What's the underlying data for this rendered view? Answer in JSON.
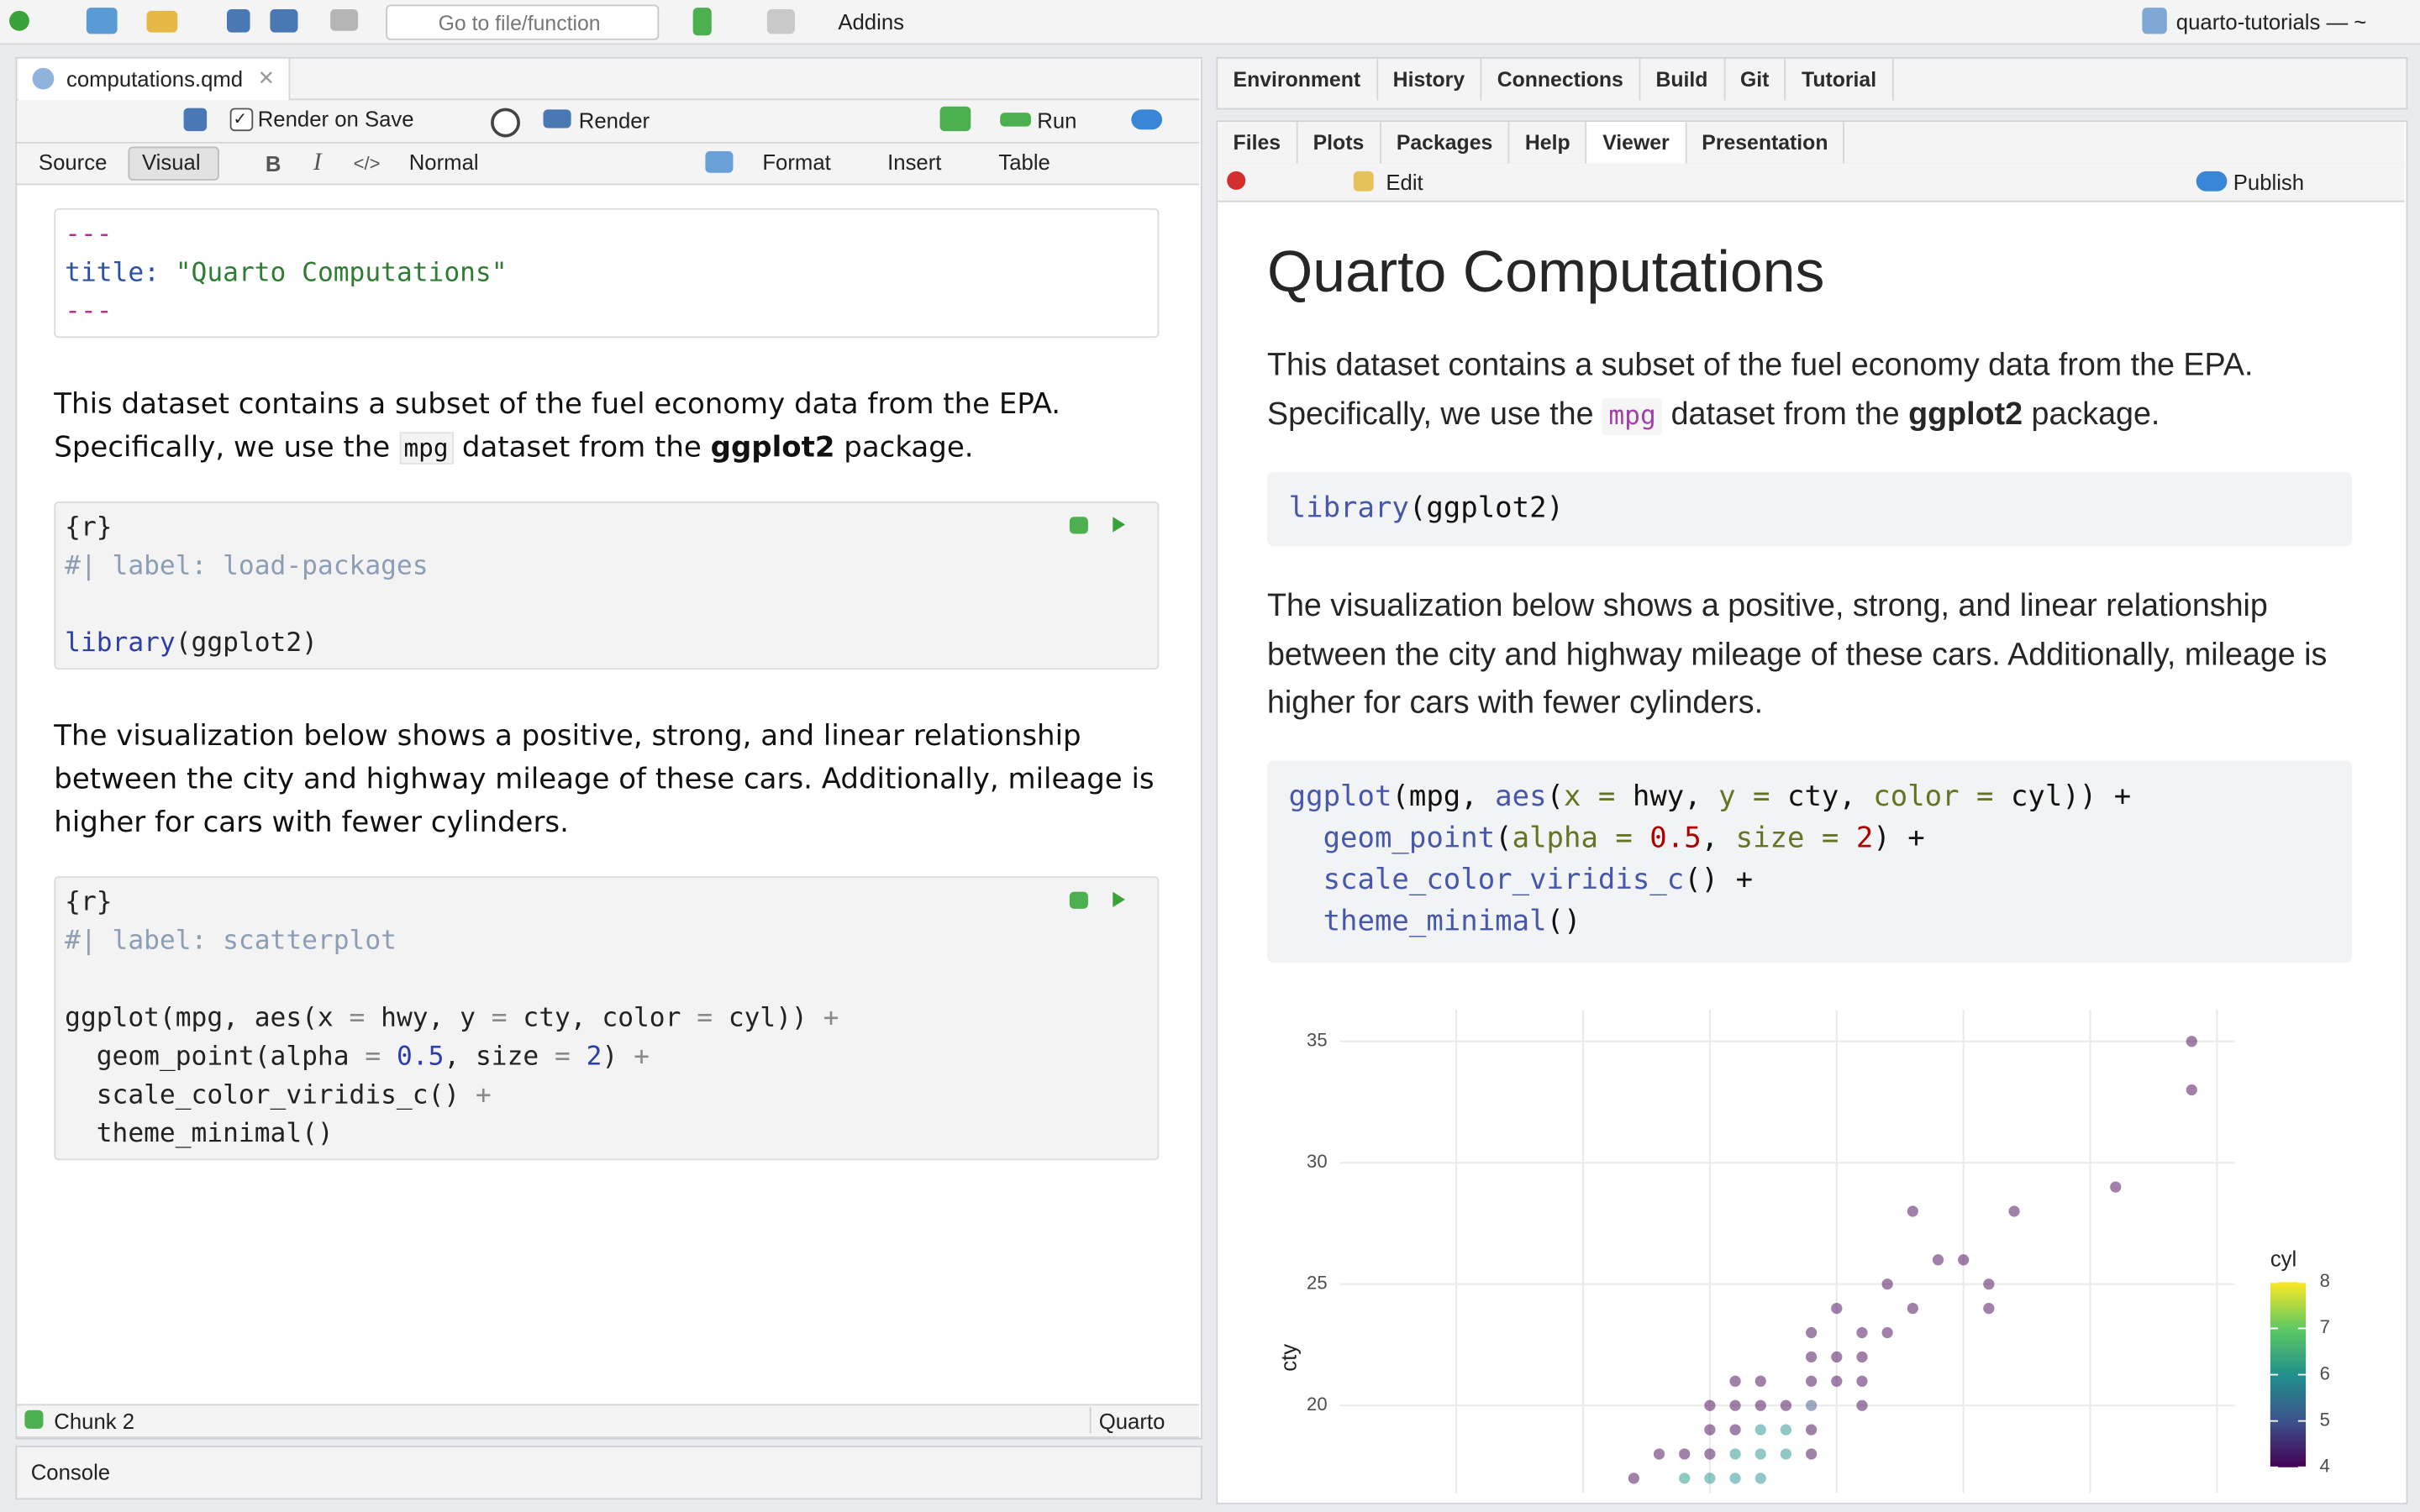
{
  "toolbar": {
    "goto_placeholder": "Go to file/function",
    "addins": "Addins",
    "project": "quarto-tutorials — ~"
  },
  "source_pane": {
    "tab": "computations.qmd",
    "render_on_save": "Render on Save",
    "render": "Render",
    "run": "Run",
    "modes": [
      "Source",
      "Visual"
    ],
    "format_bar": [
      "Normal",
      "Format",
      "Insert",
      "Table"
    ],
    "yaml": [
      [
        {
          "text": "---",
          "color": "#b5338a"
        }
      ],
      [
        {
          "text": "title:",
          "color": "#2c50a8"
        },
        {
          "text": " \"Quarto Computations\"",
          "color": "#2e7d32"
        }
      ],
      [
        {
          "text": "---",
          "color": "#b5338a"
        }
      ]
    ],
    "paragraphs": [
      [
        "This dataset contains a subset of the fuel economy data from the EPA. Specifically, we use the ",
        {
          "code": "mpg"
        },
        " dataset from the ",
        {
          "bold": "ggplot2"
        },
        " package."
      ],
      [
        "The visualization below shows a positive, strong, and linear relationship between the city and highway mileage of these cars. Additionally, mileage is higher for cars with fewer cylinders."
      ]
    ],
    "chunks": [
      [
        [
          "{r}"
        ],
        [
          {
            "text": "#| label: load-packages",
            "color": "#8d9eb4"
          }
        ],
        [],
        [
          {
            "text": "library",
            "color": "#2c3ea8"
          },
          "(ggplot2)"
        ]
      ],
      [
        [
          "{r}"
        ],
        [
          {
            "text": "#| label: scatterplot",
            "color": "#8d9eb4"
          }
        ],
        [],
        [
          "ggplot(mpg, aes(x ",
          {
            "text": "=",
            "color": "#8a8a8a"
          },
          " hwy, y ",
          {
            "text": "=",
            "color": "#8a8a8a"
          },
          " cty, color ",
          {
            "text": "=",
            "color": "#8a8a8a"
          },
          " cyl)) ",
          {
            "text": "+",
            "color": "#8a8a8a"
          }
        ],
        [
          "  geom_point(alpha ",
          {
            "text": "=",
            "color": "#8a8a8a"
          },
          " ",
          {
            "text": "0.5",
            "color": "#2c3ea8"
          },
          ", size ",
          {
            "text": "=",
            "color": "#8a8a8a"
          },
          " ",
          {
            "text": "2",
            "color": "#2c3ea8"
          },
          ") ",
          {
            "text": "+",
            "color": "#8a8a8a"
          }
        ],
        [
          "  scale_color_viridis_c() ",
          {
            "text": "+",
            "color": "#8a8a8a"
          }
        ],
        [
          "  theme_minimal()"
        ]
      ]
    ],
    "status": {
      "chunk": "Chunk 2",
      "doc_type": "Quarto"
    }
  },
  "console": {
    "title": "Console"
  },
  "env_pane": {
    "tabs": [
      "Environment",
      "History",
      "Connections",
      "Build",
      "Git",
      "Tutorial"
    ]
  },
  "viewer_pane": {
    "tabs": [
      "Files",
      "Plots",
      "Packages",
      "Help",
      "Viewer",
      "Presentation"
    ],
    "active_tab": 4,
    "edit": "Edit",
    "publish": "Publish"
  },
  "document": {
    "title": "Quarto Computations",
    "paragraphs": [
      [
        "This dataset contains a subset of the fuel economy data from the EPA. Specifically, we use the ",
        {
          "code": "mpg"
        },
        " dataset from the ",
        {
          "bold": "ggplot2"
        },
        " package."
      ],
      [
        "The visualization below shows a positive, strong, and linear relationship between the city and highway mileage of these cars. Additionally, mileage is higher for cars with fewer cylinders."
      ]
    ],
    "code_blocks": [
      [
        [
          {
            "text": "library",
            "color": "#4758ab"
          },
          "(ggplot2)"
        ]
      ],
      [
        [
          {
            "text": "ggplot",
            "color": "#4758ab"
          },
          "(mpg, ",
          {
            "text": "aes",
            "color": "#4758ab"
          },
          "(",
          {
            "text": "x =",
            "color": "#657422"
          },
          " hwy, ",
          {
            "text": "y =",
            "color": "#657422"
          },
          " cty, ",
          {
            "text": "color =",
            "color": "#657422"
          },
          " cyl)) +"
        ],
        [
          {
            "text": "  geom_point",
            "color": "#4758ab"
          },
          "(",
          {
            "text": "alpha =",
            "color": "#657422"
          },
          " ",
          {
            "text": "0.5",
            "color": "#ad0000"
          },
          ", ",
          {
            "text": "size =",
            "color": "#657422"
          },
          " ",
          {
            "text": "2",
            "color": "#ad0000"
          },
          ") +"
        ],
        [
          {
            "text": "  scale_color_viridis_c",
            "color": "#4758ab"
          },
          "() +"
        ],
        [
          {
            "text": "  theme_minimal",
            "color": "#4758ab"
          },
          "()"
        ]
      ]
    ]
  },
  "chart_data": {
    "type": "scatter",
    "y_label": "cty",
    "x": [
      44,
      44,
      41,
      33,
      37,
      34,
      35,
      32,
      36,
      30,
      33,
      36,
      29,
      31,
      32,
      29,
      30,
      31,
      26,
      27,
      29,
      30,
      31,
      25,
      26,
      27,
      28,
      29,
      31,
      25,
      26,
      27,
      28,
      29,
      23,
      24,
      25,
      26,
      27,
      28,
      29,
      22,
      24,
      25,
      26,
      27
    ],
    "y": [
      35,
      33,
      29,
      28,
      28,
      26,
      26,
      25,
      25,
      24,
      24,
      24,
      23,
      23,
      23,
      22,
      22,
      22,
      21,
      21,
      21,
      21,
      21,
      20,
      20,
      20,
      20,
      20,
      20,
      19,
      19,
      19,
      19,
      19,
      18,
      18,
      18,
      18,
      18,
      18,
      18,
      17,
      17,
      17,
      17,
      17
    ],
    "color_values": [
      4,
      4,
      4,
      4,
      4,
      4,
      4,
      4,
      4,
      4,
      4,
      4,
      4,
      4,
      4,
      4,
      4,
      4,
      4,
      4,
      4,
      4,
      4,
      4,
      4,
      4,
      4,
      5,
      4,
      4,
      4,
      6,
      6,
      4,
      4,
      4,
      4,
      6,
      6,
      6,
      4,
      4,
      6,
      6,
      6,
      6
    ],
    "xlim": [
      10.4,
      45.7
    ],
    "ylim": [
      16.4,
      36.3
    ],
    "yticks": [
      20,
      25,
      30,
      35
    ],
    "xgrid": [
      15,
      20,
      25,
      30,
      35,
      40,
      45
    ],
    "grid": true,
    "point_alpha": 0.5,
    "legend": {
      "title": "cyl",
      "limits": [
        4,
        8
      ],
      "ticks": [
        4,
        5,
        6,
        7,
        8
      ],
      "colors": [
        "#440154",
        "#3b528b",
        "#21918c",
        "#5ec962",
        "#fde725"
      ]
    }
  }
}
